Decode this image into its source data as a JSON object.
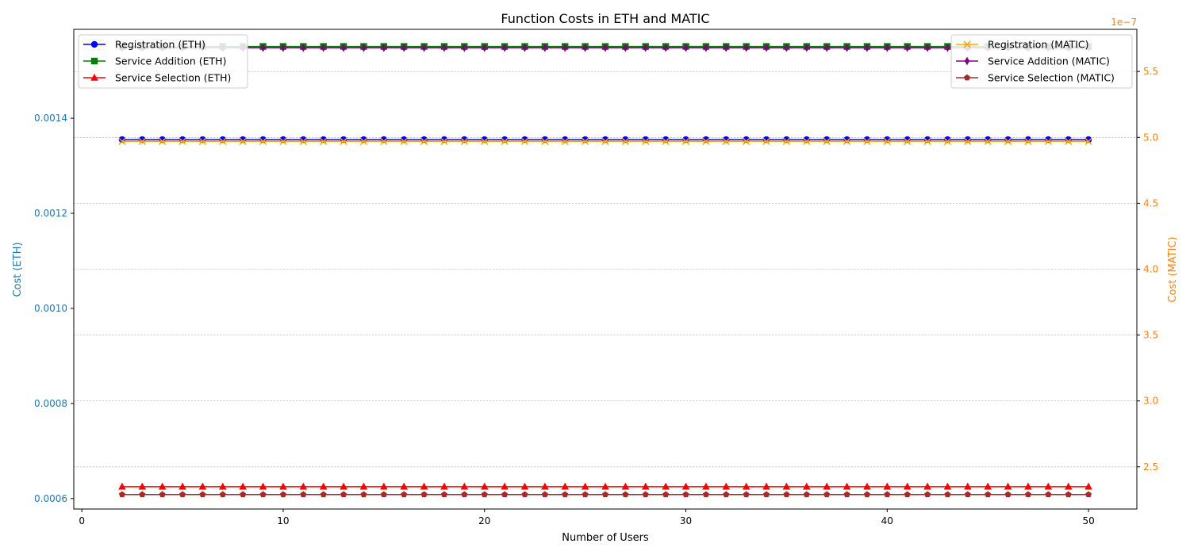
{
  "chart_data": {
    "type": "line",
    "title": "Function Costs in ETH and MATIC",
    "xlabel": "Number of Users",
    "ylabel_left": "Cost (ETH)",
    "ylabel_right": "Cost (MATIC)",
    "right_axis_offset_text": "1e−7",
    "x": [
      2,
      3,
      4,
      5,
      6,
      7,
      8,
      9,
      10,
      11,
      12,
      13,
      14,
      15,
      16,
      17,
      18,
      19,
      20,
      21,
      22,
      23,
      24,
      25,
      26,
      27,
      28,
      29,
      30,
      31,
      32,
      33,
      34,
      35,
      36,
      37,
      38,
      39,
      40,
      41,
      42,
      43,
      44,
      45,
      46,
      47,
      48,
      49,
      50
    ],
    "xlim": [
      -0.4,
      52.4
    ],
    "xticks": [
      0,
      10,
      20,
      30,
      40,
      50
    ],
    "ylim_left": [
      0.000578,
      0.001587
    ],
    "yticks_left": [
      0.0006,
      0.0008,
      0.001,
      0.0012,
      0.0014
    ],
    "ytick_labels_left": [
      "0.0006",
      "0.0008",
      "0.0010",
      "0.0012",
      "0.0014"
    ],
    "ylim_right": [
      2.18e-07,
      5.82e-07
    ],
    "yticks_right": [
      2.5e-07,
      3e-07,
      3.5e-07,
      4e-07,
      4.5e-07,
      5e-07,
      5.5e-07
    ],
    "ytick_labels_right": [
      "2.5",
      "3.0",
      "3.5",
      "4.0",
      "4.5",
      "5.0",
      "5.5"
    ],
    "grid": "horizontal-right-axis-dashed",
    "left_axis_color": "#1f77b4",
    "right_axis_color": "#ff7f0e",
    "series_left": [
      {
        "name": "Registration (ETH)",
        "color": "#0000ff",
        "marker": "circle",
        "value": 0.001355
      },
      {
        "name": "Service Addition (ETH)",
        "color": "#008000",
        "marker": "square",
        "value": 0.001551
      },
      {
        "name": "Service Selection (ETH)",
        "color": "#ff0000",
        "marker": "triangle",
        "value": 0.000625
      }
    ],
    "series_right": [
      {
        "name": "Registration (MATIC)",
        "color": "#ffa500",
        "marker": "x",
        "value": 4.97e-07
      },
      {
        "name": "Service Addition (MATIC)",
        "color": "#800080",
        "marker": "diamond",
        "value": 5.68e-07
      },
      {
        "name": "Service Selection (MATIC)",
        "color": "#a52a2a",
        "marker": "pentagon",
        "value": 2.29e-07
      }
    ],
    "legend_left_placement": "upper-left",
    "legend_right_placement": "upper-right"
  }
}
